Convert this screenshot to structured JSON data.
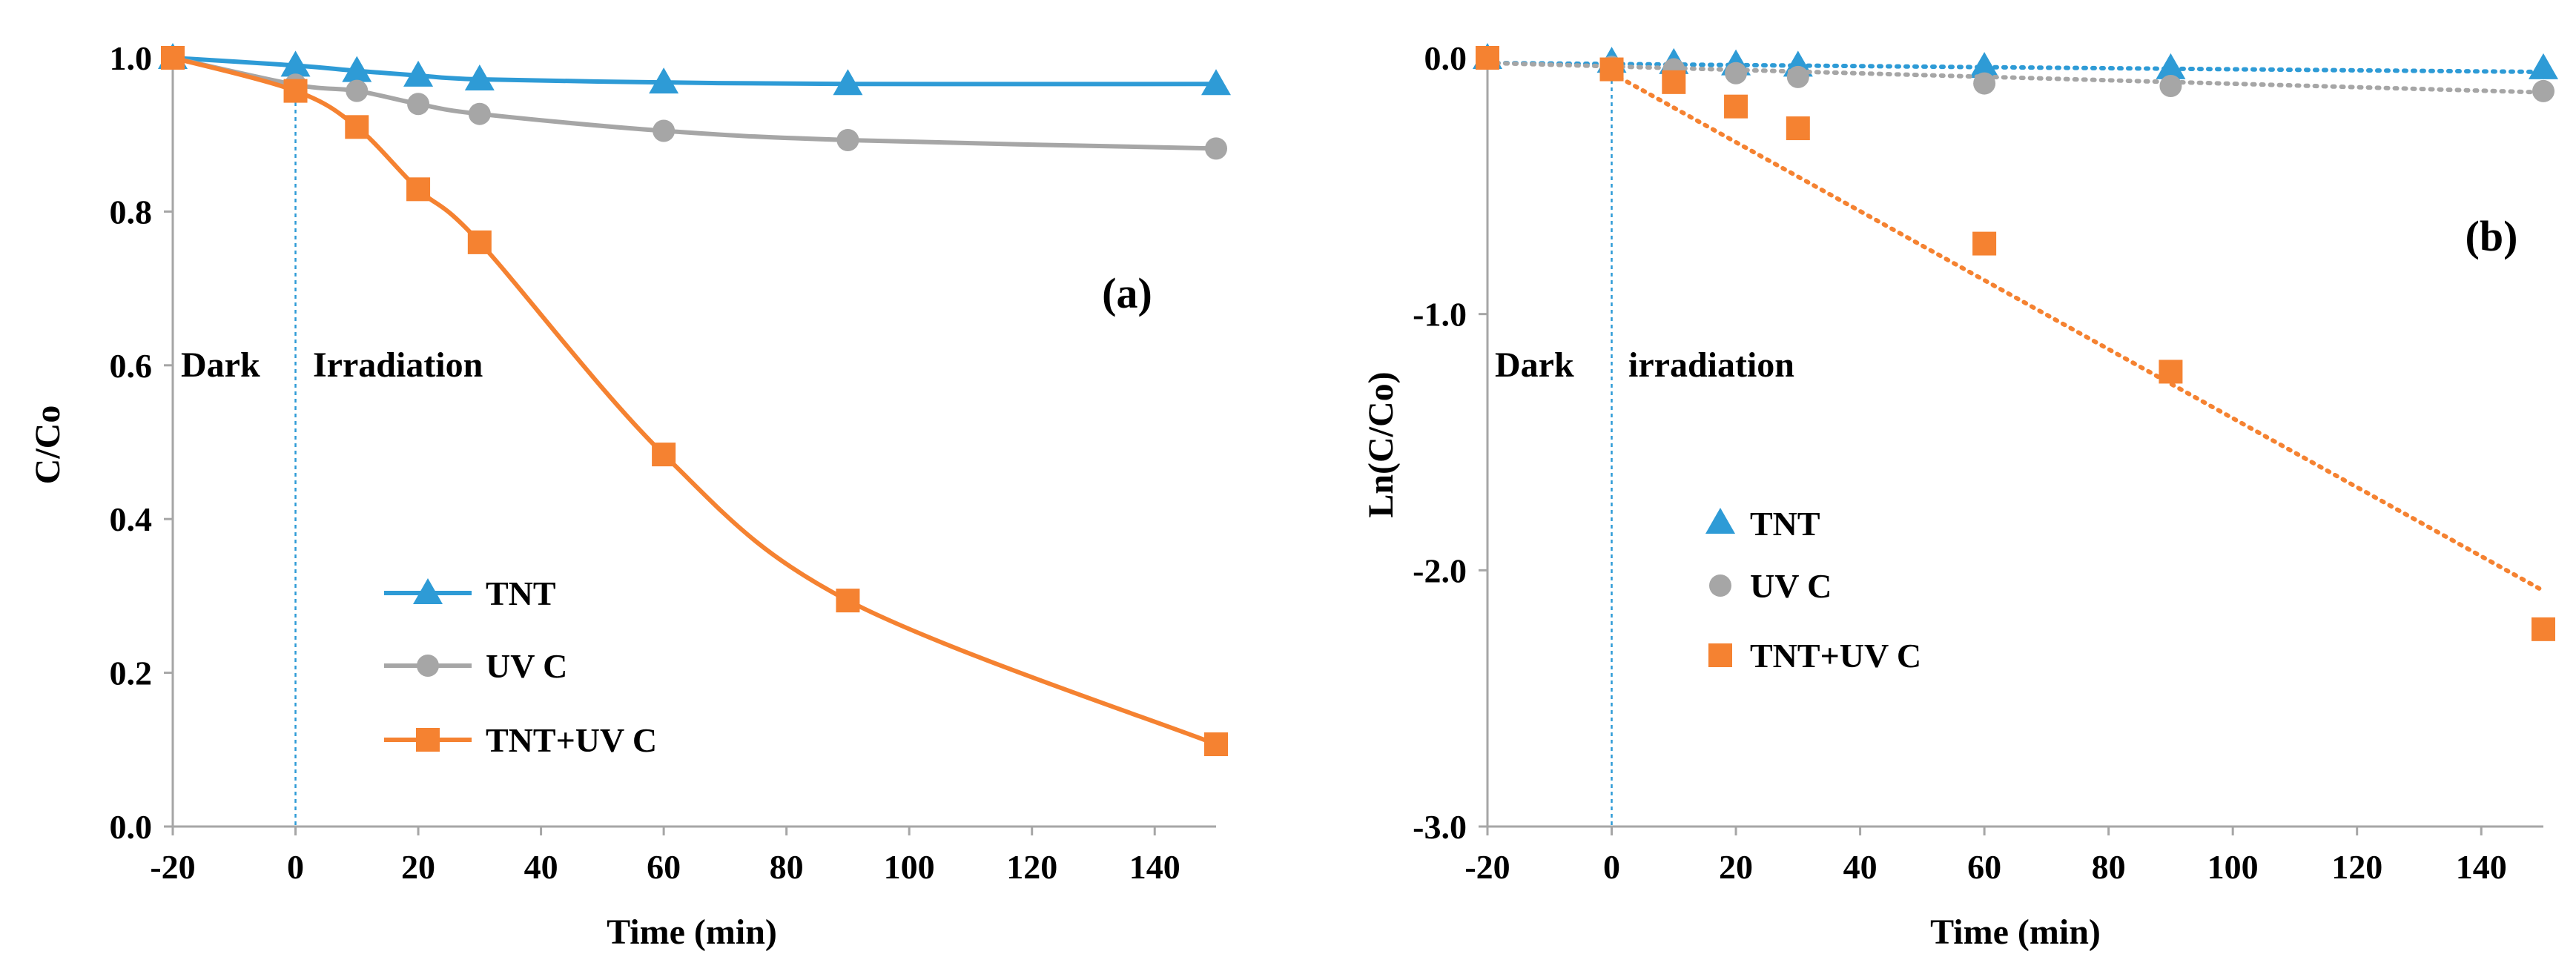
{
  "colors": {
    "tnt": "#2E9BD6",
    "uvc": "#A6A6A6",
    "tnt_uvc": "#F58231",
    "axis": "#A6A6A6",
    "divider": "#2E9BD6"
  },
  "chart_data": [
    {
      "type": "line",
      "panel_label": "(a)",
      "xlabel": "Time (min)",
      "ylabel": "C/Co",
      "xlim": [
        -20,
        150
      ],
      "ylim": [
        0,
        1.0
      ],
      "xticks": [
        -20,
        0,
        20,
        40,
        60,
        80,
        100,
        120,
        140
      ],
      "xtick_labels": [
        "-20",
        "0",
        "20",
        "40",
        "60",
        "80",
        "100",
        "120",
        "140"
      ],
      "yticks": [
        0,
        0.2,
        0.4,
        0.6,
        0.8,
        1.0
      ],
      "ytick_labels": [
        "0.0",
        "0.2",
        "0.4",
        "0.6",
        "0.8",
        "1.0"
      ],
      "divider_x": 0,
      "region_labels": [
        "Dark",
        "Irradiation"
      ],
      "legend_position": "lower-middle",
      "x": [
        -20,
        0,
        10,
        20,
        30,
        60,
        90,
        150
      ],
      "series": [
        {
          "name": "TNT",
          "marker": "triangle",
          "color_key": "tnt",
          "style": "smooth",
          "values": [
            1.0,
            0.99,
            0.983,
            0.977,
            0.972,
            0.968,
            0.966,
            0.966
          ]
        },
        {
          "name": "UV C",
          "marker": "circle",
          "color_key": "uvc",
          "style": "smooth",
          "values": [
            1.0,
            0.965,
            0.957,
            0.94,
            0.927,
            0.905,
            0.893,
            0.882
          ]
        },
        {
          "name": "TNT+UV C",
          "marker": "square",
          "color_key": "tnt_uvc",
          "style": "smooth",
          "values": [
            1.0,
            0.957,
            0.91,
            0.829,
            0.76,
            0.484,
            0.294,
            0.107
          ]
        }
      ]
    },
    {
      "type": "scatter",
      "panel_label": "(b)",
      "xlabel": "Time (min)",
      "ylabel": "Ln(C/Co)",
      "xlim": [
        -20,
        150
      ],
      "ylim": [
        -3.0,
        0.0
      ],
      "xticks": [
        -20,
        0,
        20,
        40,
        60,
        80,
        100,
        120,
        140
      ],
      "xtick_labels": [
        "-20",
        "0",
        "20",
        "40",
        "60",
        "80",
        "100",
        "120",
        "140"
      ],
      "yticks": [
        -3.0,
        -2.0,
        -1.0,
        0.0
      ],
      "ytick_labels": [
        "-3.0",
        "-2.0",
        "-1.0",
        "0.0"
      ],
      "divider_x": 0,
      "region_labels": [
        "Dark",
        "irradiation"
      ],
      "legend_position": "middle-left",
      "x": [
        -20,
        0,
        10,
        20,
        30,
        60,
        90,
        150
      ],
      "series": [
        {
          "name": "TNT",
          "marker": "triangle",
          "color_key": "tnt",
          "values": [
            0.0,
            -0.015,
            -0.02,
            -0.025,
            -0.03,
            -0.035,
            -0.04,
            -0.04
          ],
          "trendline": {
            "x": [
              -20,
              150
            ],
            "y": [
              -0.02,
              -0.055
            ]
          }
        },
        {
          "name": "UV C",
          "marker": "circle",
          "color_key": "uvc",
          "values": [
            0.0,
            -0.035,
            -0.045,
            -0.06,
            -0.075,
            -0.1,
            -0.11,
            -0.13
          ],
          "trendline": {
            "x": [
              -20,
              150
            ],
            "y": [
              -0.02,
              -0.135
            ]
          }
        },
        {
          "name": "TNT+UV C",
          "marker": "square",
          "color_key": "tnt_uvc",
          "values": [
            0.0,
            -0.045,
            -0.095,
            -0.19,
            -0.275,
            -0.725,
            -1.225,
            -2.23
          ],
          "trendline": {
            "x": [
              0,
              150
            ],
            "y": [
              -0.06,
              -2.08
            ]
          }
        }
      ]
    }
  ]
}
